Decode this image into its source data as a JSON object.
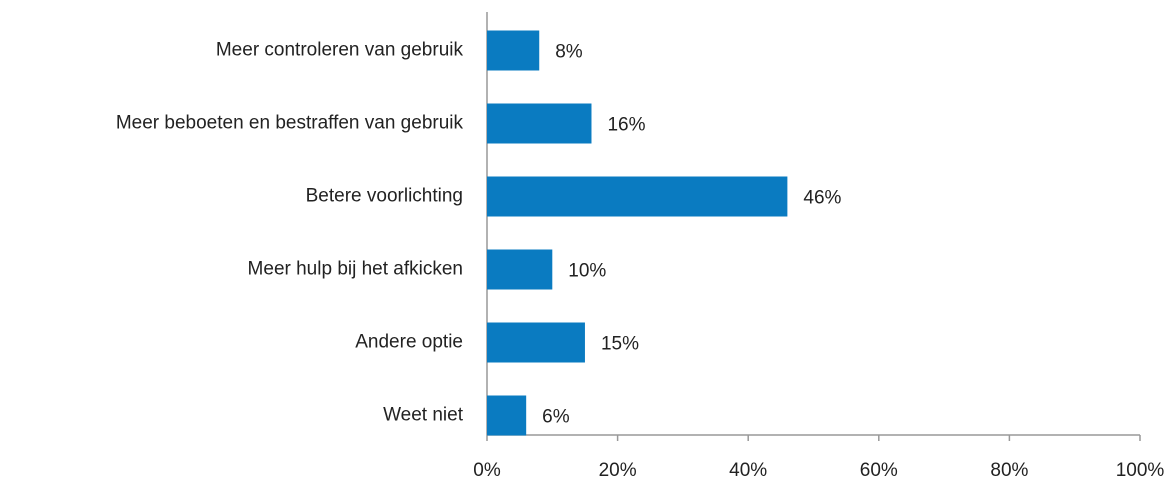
{
  "chart_data": {
    "type": "bar",
    "orientation": "horizontal",
    "categories": [
      "Meer controleren van gebruik",
      "Meer beboeten en bestraffen van gebruik",
      "Betere voorlichting",
      "Meer hulp bij het afkicken",
      "Andere optie",
      "Weet niet"
    ],
    "values": [
      8,
      16,
      46,
      10,
      15,
      6
    ],
    "value_labels": [
      "8%",
      "16%",
      "46%",
      "10%",
      "15%",
      "6%"
    ],
    "color": "#0a7bc1",
    "xlim": [
      0,
      100
    ],
    "xticks": [
      {
        "value": 0,
        "label": "0%"
      },
      {
        "value": 20,
        "label": "20%"
      },
      {
        "value": 40,
        "label": "40%"
      },
      {
        "value": 60,
        "label": "60%"
      },
      {
        "value": 80,
        "label": "80%"
      },
      {
        "value": 100,
        "label": "100%"
      }
    ],
    "grid": false
  }
}
